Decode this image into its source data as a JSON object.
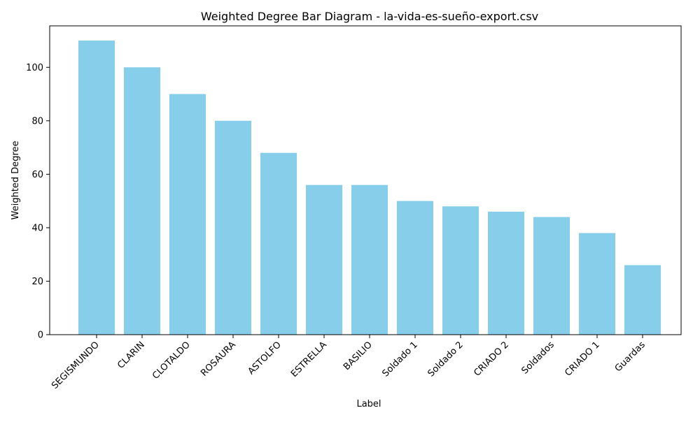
{
  "chart_data": {
    "type": "bar",
    "title": "Weighted Degree Bar Diagram - la-vida-es-sueño-export.csv",
    "xlabel": "Label",
    "ylabel": "Weighted Degree",
    "categories": [
      "SEGISMUNDO",
      "CLARIN",
      "CLOTALDO",
      "ROSAURA",
      "ASTOLFO",
      "ESTRELLA",
      "BASILIO",
      "Soldado 1",
      "Soldado 2",
      "CRIADO 2",
      "Soldados",
      "CRIADO 1",
      "Guardas"
    ],
    "values": [
      110,
      100,
      90,
      80,
      68,
      56,
      56,
      50,
      48,
      46,
      44,
      38,
      26
    ],
    "ylim": [
      0,
      115.5
    ],
    "yticks": [
      0,
      20,
      40,
      60,
      80,
      100
    ],
    "bar_color": "#87CEEB",
    "grid": false,
    "legend": "none"
  }
}
